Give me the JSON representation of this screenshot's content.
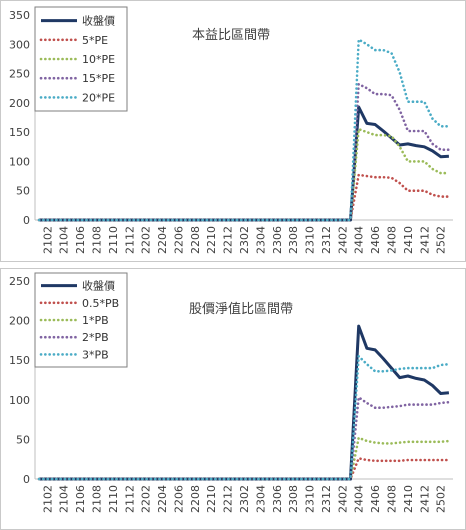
{
  "chart_data": [
    {
      "type": "line",
      "title": "本益比區間帶",
      "xlabel": "",
      "ylabel": "",
      "ylim": [
        0,
        350
      ],
      "yticks": [
        0,
        50,
        100,
        150,
        200,
        250,
        300,
        350
      ],
      "grid": false,
      "legend_position": "top-left",
      "categories": [
        "2101",
        "2102",
        "2103",
        "2104",
        "2105",
        "2106",
        "2107",
        "2108",
        "2109",
        "2110",
        "2111",
        "2112",
        "2201",
        "2202",
        "2203",
        "2204",
        "2205",
        "2206",
        "2207",
        "2208",
        "2209",
        "2210",
        "2211",
        "2212",
        "2301",
        "2302",
        "2303",
        "2304",
        "2305",
        "2306",
        "2307",
        "2308",
        "2309",
        "2310",
        "2311",
        "2312",
        "2401",
        "2402",
        "2403",
        "2404",
        "2405",
        "2406",
        "2407",
        "2408",
        "2409",
        "2410",
        "2411",
        "2412",
        "2501",
        "2502",
        "2503"
      ],
      "xtick_labels": [
        "2102",
        "2104",
        "2106",
        "2108",
        "2110",
        "2112",
        "2202",
        "2204",
        "2206",
        "2208",
        "2210",
        "2212",
        "2302",
        "2304",
        "2306",
        "2308",
        "2310",
        "2312",
        "2402",
        "2404",
        "2406",
        "2408",
        "2410",
        "2412",
        "2502"
      ],
      "series": [
        {
          "name": "收盤價",
          "color": "#1f3864",
          "style": "solid",
          "values": [
            0,
            0,
            0,
            0,
            0,
            0,
            0,
            0,
            0,
            0,
            0,
            0,
            0,
            0,
            0,
            0,
            0,
            0,
            0,
            0,
            0,
            0,
            0,
            0,
            0,
            0,
            0,
            0,
            0,
            0,
            0,
            0,
            0,
            0,
            0,
            0,
            0,
            0,
            0,
            193,
            165,
            163,
            152,
            140,
            128,
            130,
            127,
            125,
            118,
            108,
            109
          ]
        },
        {
          "name": "5*PE",
          "color": "#c0504d",
          "style": "dotted",
          "values": [
            0,
            0,
            0,
            0,
            0,
            0,
            0,
            0,
            0,
            0,
            0,
            0,
            0,
            0,
            0,
            0,
            0,
            0,
            0,
            0,
            0,
            0,
            0,
            0,
            0,
            0,
            0,
            0,
            0,
            0,
            0,
            0,
            0,
            0,
            0,
            0,
            0,
            0,
            0,
            77,
            75,
            73,
            73,
            72,
            63,
            50,
            50,
            50,
            43,
            40,
            40
          ]
        },
        {
          "name": "10*PE",
          "color": "#9bbb59",
          "style": "dotted",
          "values": [
            0,
            0,
            0,
            0,
            0,
            0,
            0,
            0,
            0,
            0,
            0,
            0,
            0,
            0,
            0,
            0,
            0,
            0,
            0,
            0,
            0,
            0,
            0,
            0,
            0,
            0,
            0,
            0,
            0,
            0,
            0,
            0,
            0,
            0,
            0,
            0,
            0,
            0,
            0,
            155,
            150,
            145,
            145,
            143,
            125,
            100,
            100,
            100,
            87,
            80,
            80
          ]
        },
        {
          "name": "15*PE",
          "color": "#8064a2",
          "style": "dotted",
          "values": [
            0,
            0,
            0,
            0,
            0,
            0,
            0,
            0,
            0,
            0,
            0,
            0,
            0,
            0,
            0,
            0,
            0,
            0,
            0,
            0,
            0,
            0,
            0,
            0,
            0,
            0,
            0,
            0,
            0,
            0,
            0,
            0,
            0,
            0,
            0,
            0,
            0,
            0,
            0,
            232,
            225,
            215,
            215,
            213,
            188,
            152,
            152,
            152,
            130,
            120,
            120
          ]
        },
        {
          "name": "20*PE",
          "color": "#4bacc6",
          "style": "dotted",
          "values": [
            0,
            0,
            0,
            0,
            0,
            0,
            0,
            0,
            0,
            0,
            0,
            0,
            0,
            0,
            0,
            0,
            0,
            0,
            0,
            0,
            0,
            0,
            0,
            0,
            0,
            0,
            0,
            0,
            0,
            0,
            0,
            0,
            0,
            0,
            0,
            0,
            0,
            0,
            0,
            308,
            300,
            290,
            290,
            285,
            252,
            202,
            202,
            202,
            173,
            160,
            160
          ]
        }
      ]
    },
    {
      "type": "line",
      "title": "股價淨值比區間帶",
      "xlabel": "",
      "ylabel": "",
      "ylim": [
        0,
        250
      ],
      "yticks": [
        0,
        50,
        100,
        150,
        200,
        250
      ],
      "grid": false,
      "legend_position": "top-left",
      "categories": [
        "2101",
        "2102",
        "2103",
        "2104",
        "2105",
        "2106",
        "2107",
        "2108",
        "2109",
        "2110",
        "2111",
        "2112",
        "2201",
        "2202",
        "2203",
        "2204",
        "2205",
        "2206",
        "2207",
        "2208",
        "2209",
        "2210",
        "2211",
        "2212",
        "2301",
        "2302",
        "2303",
        "2304",
        "2305",
        "2306",
        "2307",
        "2308",
        "2309",
        "2310",
        "2311",
        "2312",
        "2401",
        "2402",
        "2403",
        "2404",
        "2405",
        "2406",
        "2407",
        "2408",
        "2409",
        "2410",
        "2411",
        "2412",
        "2501",
        "2502",
        "2503"
      ],
      "xtick_labels": [
        "2102",
        "2104",
        "2106",
        "2108",
        "2110",
        "2112",
        "2202",
        "2204",
        "2206",
        "2208",
        "2210",
        "2212",
        "2302",
        "2304",
        "2306",
        "2308",
        "2310",
        "2312",
        "2402",
        "2404",
        "2406",
        "2408",
        "2410",
        "2412",
        "2502"
      ],
      "series": [
        {
          "name": "收盤價",
          "color": "#1f3864",
          "style": "solid",
          "values": [
            0,
            0,
            0,
            0,
            0,
            0,
            0,
            0,
            0,
            0,
            0,
            0,
            0,
            0,
            0,
            0,
            0,
            0,
            0,
            0,
            0,
            0,
            0,
            0,
            0,
            0,
            0,
            0,
            0,
            0,
            0,
            0,
            0,
            0,
            0,
            0,
            0,
            0,
            0,
            193,
            165,
            163,
            152,
            140,
            128,
            130,
            127,
            125,
            118,
            108,
            109
          ]
        },
        {
          "name": "0.5*PB",
          "color": "#c0504d",
          "style": "dotted",
          "values": [
            0,
            0,
            0,
            0,
            0,
            0,
            0,
            0,
            0,
            0,
            0,
            0,
            0,
            0,
            0,
            0,
            0,
            0,
            0,
            0,
            0,
            0,
            0,
            0,
            0,
            0,
            0,
            0,
            0,
            0,
            0,
            0,
            0,
            0,
            0,
            0,
            0,
            0,
            0,
            26,
            24,
            23,
            23,
            23,
            23,
            24,
            24,
            24,
            24,
            24,
            24
          ]
        },
        {
          "name": "1*PB",
          "color": "#9bbb59",
          "style": "dotted",
          "values": [
            0,
            0,
            0,
            0,
            0,
            0,
            0,
            0,
            0,
            0,
            0,
            0,
            0,
            0,
            0,
            0,
            0,
            0,
            0,
            0,
            0,
            0,
            0,
            0,
            0,
            0,
            0,
            0,
            0,
            0,
            0,
            0,
            0,
            0,
            0,
            0,
            0,
            0,
            0,
            52,
            48,
            46,
            45,
            45,
            46,
            47,
            47,
            47,
            47,
            47,
            48
          ]
        },
        {
          "name": "2*PB",
          "color": "#8064a2",
          "style": "dotted",
          "values": [
            0,
            0,
            0,
            0,
            0,
            0,
            0,
            0,
            0,
            0,
            0,
            0,
            0,
            0,
            0,
            0,
            0,
            0,
            0,
            0,
            0,
            0,
            0,
            0,
            0,
            0,
            0,
            0,
            0,
            0,
            0,
            0,
            0,
            0,
            0,
            0,
            0,
            0,
            0,
            103,
            96,
            90,
            90,
            91,
            92,
            94,
            94,
            94,
            94,
            96,
            97
          ]
        },
        {
          "name": "3*PB",
          "color": "#4bacc6",
          "style": "dotted",
          "values": [
            0,
            0,
            0,
            0,
            0,
            0,
            0,
            0,
            0,
            0,
            0,
            0,
            0,
            0,
            0,
            0,
            0,
            0,
            0,
            0,
            0,
            0,
            0,
            0,
            0,
            0,
            0,
            0,
            0,
            0,
            0,
            0,
            0,
            0,
            0,
            0,
            0,
            0,
            0,
            155,
            145,
            136,
            136,
            137,
            139,
            140,
            140,
            140,
            140,
            144,
            145
          ]
        }
      ]
    }
  ]
}
